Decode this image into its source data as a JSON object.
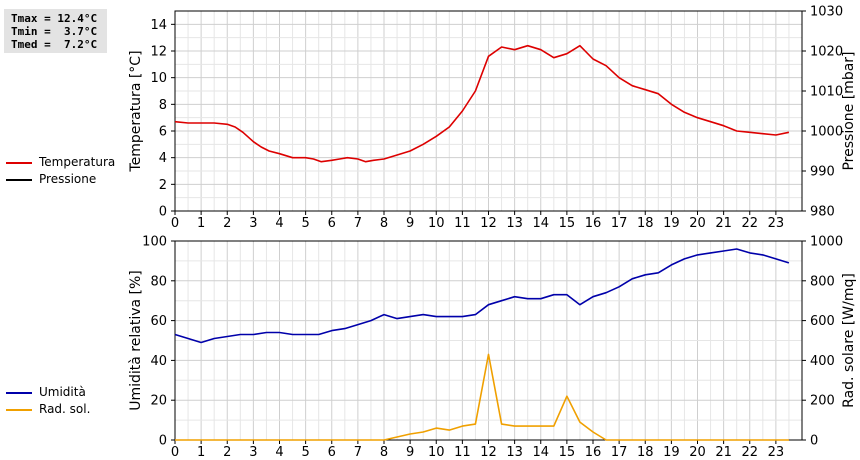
{
  "stats": {
    "tmax": "Tmax = 12.4°C",
    "tmin": "Tmin =  3.7°C",
    "tmed": "Tmed =  7.2°C"
  },
  "legend_top": [
    {
      "label": "Temperatura",
      "color": "#dd0000"
    },
    {
      "label": "Pressione",
      "color": "#000000"
    }
  ],
  "legend_bottom": [
    {
      "label": "Umidità",
      "color": "#0000aa"
    },
    {
      "label": "Rad. sol.",
      "color": "#f0a000"
    }
  ],
  "chart_data": [
    {
      "type": "line",
      "ylabel": "Temperatura [°C]",
      "y2label": "Pressione [mbar]",
      "xlim": [
        0,
        24
      ],
      "ylim": [
        0,
        15
      ],
      "y2lim": [
        980,
        1030
      ],
      "x_ticks": [
        "0",
        "1",
        "2",
        "3",
        "4",
        "5",
        "6",
        "7",
        "8",
        "9",
        "10",
        "11",
        "12",
        "13",
        "14",
        "15",
        "16",
        "17",
        "18",
        "19",
        "20",
        "21",
        "22",
        "23"
      ],
      "y_ticks": [
        "0",
        "2",
        "4",
        "6",
        "8",
        "10",
        "12",
        "14"
      ],
      "y2_ticks": [
        "980",
        "990",
        "1000",
        "1010",
        "1020",
        "1030"
      ],
      "grid": true,
      "series": [
        {
          "name": "Temperatura",
          "color": "#dd0000",
          "axis": "left",
          "x": [
            0,
            0.5,
            1,
            1.5,
            2,
            2.3,
            2.6,
            3,
            3.3,
            3.6,
            4,
            4.5,
            5,
            5.3,
            5.6,
            6,
            6.3,
            6.6,
            7,
            7.3,
            7.6,
            8,
            8.5,
            9,
            9.5,
            10,
            10.5,
            11,
            11.5,
            12,
            12.5,
            13,
            13.5,
            14,
            14.5,
            15,
            15.5,
            16,
            16.5,
            17,
            17.5,
            18,
            18.5,
            19,
            19.5,
            20,
            20.5,
            21,
            21.5,
            22,
            22.5,
            23,
            23.5
          ],
          "y": [
            6.7,
            6.6,
            6.6,
            6.6,
            6.5,
            6.3,
            5.9,
            5.2,
            4.8,
            4.5,
            4.3,
            4.0,
            4.0,
            3.9,
            3.7,
            3.8,
            3.9,
            4.0,
            3.9,
            3.7,
            3.8,
            3.9,
            4.2,
            4.5,
            5.0,
            5.6,
            6.3,
            7.5,
            9.0,
            11.6,
            12.3,
            12.1,
            12.4,
            12.1,
            11.5,
            11.8,
            12.4,
            11.4,
            10.9,
            10.0,
            9.4,
            9.1,
            8.8,
            8.0,
            7.4,
            7.0,
            6.7,
            6.4,
            6.0,
            5.9,
            5.8,
            5.7,
            5.9
          ]
        },
        {
          "name": "Pressione",
          "color": "#000000",
          "axis": "right",
          "x": [],
          "y": []
        }
      ]
    },
    {
      "type": "line",
      "ylabel": "Umidità relativa [%]",
      "y2label": "Rad. solare [W/mq]",
      "xlim": [
        0,
        24
      ],
      "ylim": [
        0,
        100
      ],
      "y2lim": [
        0,
        1000
      ],
      "x_ticks": [
        "0",
        "1",
        "2",
        "3",
        "4",
        "5",
        "6",
        "7",
        "8",
        "9",
        "10",
        "11",
        "12",
        "13",
        "14",
        "15",
        "16",
        "17",
        "18",
        "19",
        "20",
        "21",
        "22",
        "23"
      ],
      "y_ticks": [
        "0",
        "20",
        "40",
        "60",
        "80",
        "100"
      ],
      "y2_ticks": [
        "0",
        "200",
        "400",
        "600",
        "800",
        "1000"
      ],
      "grid": true,
      "series": [
        {
          "name": "Umidità",
          "color": "#0000aa",
          "axis": "left",
          "x": [
            0,
            0.5,
            1,
            1.5,
            2,
            2.5,
            3,
            3.5,
            4,
            4.5,
            5,
            5.5,
            6,
            6.5,
            7,
            7.5,
            8,
            8.5,
            9,
            9.5,
            10,
            10.5,
            11,
            11.5,
            12,
            12.5,
            13,
            13.5,
            14,
            14.5,
            15,
            15.5,
            16,
            16.5,
            17,
            17.5,
            18,
            18.5,
            19,
            19.5,
            20,
            20.5,
            21,
            21.5,
            22,
            22.5,
            23,
            23.5
          ],
          "y": [
            53,
            51,
            49,
            51,
            52,
            53,
            53,
            54,
            54,
            53,
            53,
            53,
            55,
            56,
            58,
            60,
            63,
            61,
            62,
            63,
            62,
            62,
            62,
            63,
            68,
            70,
            72,
            71,
            71,
            73,
            73,
            68,
            72,
            74,
            77,
            81,
            83,
            84,
            88,
            91,
            93,
            94,
            95,
            96,
            94,
            93,
            91,
            89
          ]
        },
        {
          "name": "Rad. sol.",
          "color": "#f0a000",
          "axis": "right",
          "x": [
            0,
            1,
            2,
            3,
            4,
            5,
            6,
            7,
            8,
            8.5,
            9,
            9.5,
            10,
            10.5,
            11,
            11.5,
            12,
            12.5,
            13,
            13.5,
            14,
            14.5,
            15,
            15.5,
            16,
            16.5,
            17,
            18,
            19,
            20,
            21,
            22,
            23,
            23.5
          ],
          "y": [
            0,
            0,
            0,
            0,
            0,
            0,
            0,
            0,
            0,
            15,
            30,
            40,
            60,
            50,
            70,
            80,
            430,
            80,
            70,
            70,
            70,
            70,
            220,
            90,
            40,
            0,
            0,
            0,
            0,
            0,
            0,
            0,
            0,
            0
          ]
        }
      ]
    }
  ]
}
